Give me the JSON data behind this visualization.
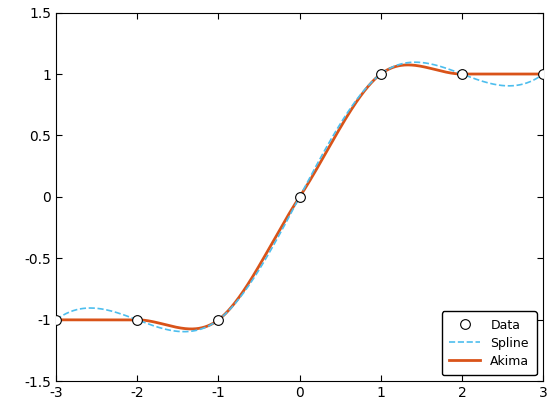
{
  "x_data": [
    -3,
    -2,
    -1,
    0,
    1,
    2,
    3
  ],
  "y_data": [
    -1,
    -1,
    -1,
    0,
    1,
    1,
    1
  ],
  "xlim": [
    -3,
    3
  ],
  "ylim": [
    -1.5,
    1.5
  ],
  "xticks": [
    -3,
    -2,
    -1,
    0,
    1,
    2,
    3
  ],
  "yticks": [
    -1.5,
    -1.0,
    -0.5,
    0.0,
    0.5,
    1.0,
    1.5
  ],
  "spline_color": "#4DBEEE",
  "akima_color": "#D95319",
  "data_markerfacecolor": "white",
  "data_markeredgecolor": "black",
  "data_markersize": 7,
  "spline_linewidth": 1.2,
  "akima_linewidth": 2.0,
  "legend_labels": [
    "Data",
    "Spline",
    "Akima"
  ],
  "background_color": "#ffffff",
  "figsize": [
    5.6,
    4.19
  ],
  "dpi": 100
}
